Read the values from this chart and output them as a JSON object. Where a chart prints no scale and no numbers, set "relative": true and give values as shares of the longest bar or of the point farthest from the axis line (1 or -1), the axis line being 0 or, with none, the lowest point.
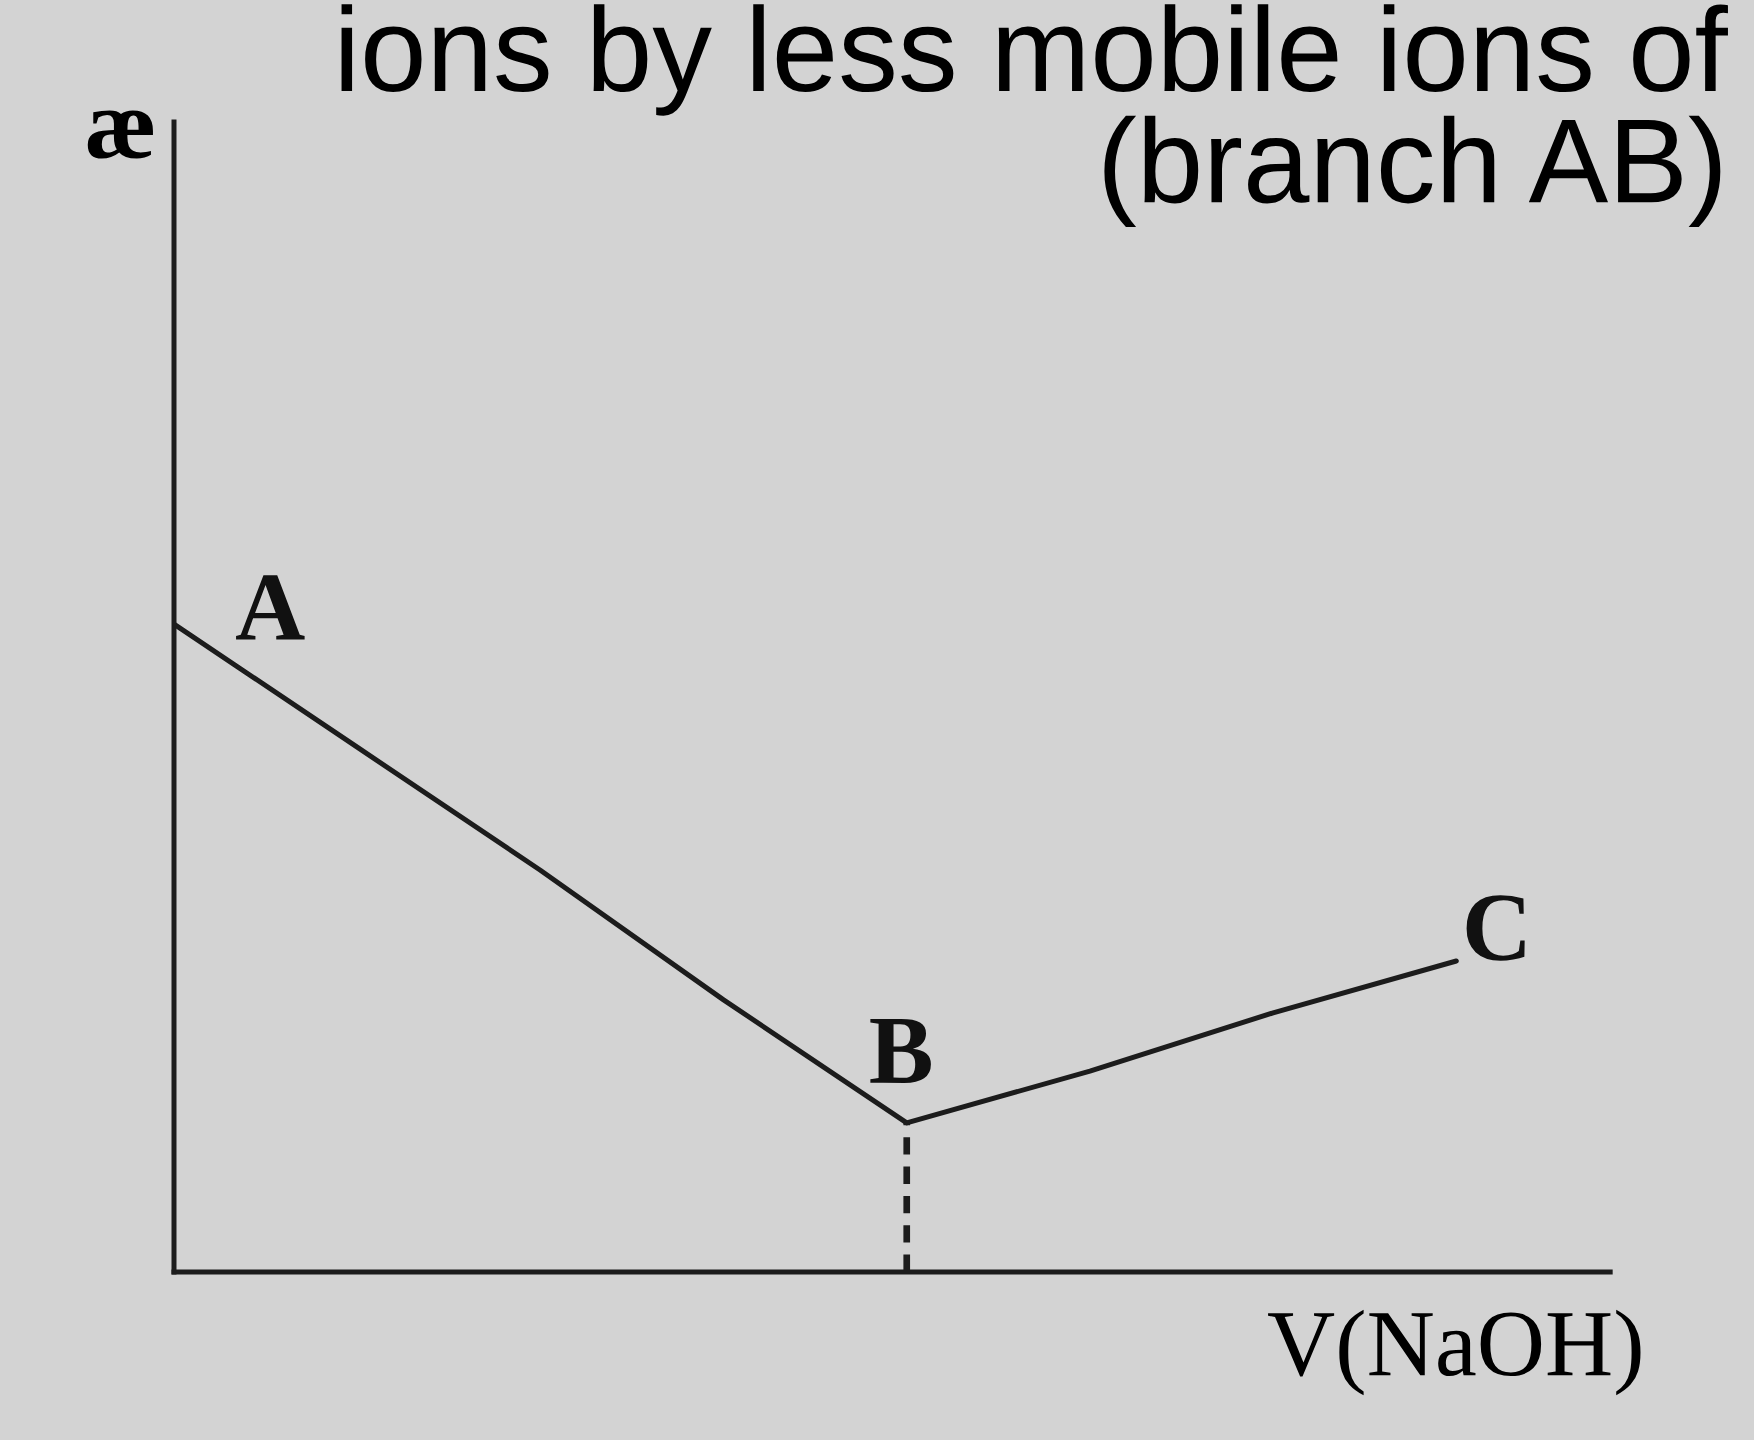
{
  "chart_data": {
    "type": "line",
    "title": "ions by less mobile ions of\n(branch AB)",
    "xlabel": "V(NaOH)",
    "ylabel": "æ",
    "relative": true,
    "line_style": "solid",
    "categories": [
      null,
      null,
      null,
      null,
      null,
      null,
      null,
      null
    ],
    "series": [
      {
        "color": "#1c1c1c",
        "values": [
          1,
          0.81,
          0.62,
          0.42,
          0.23,
          0.31,
          0.4,
          0.48
        ]
      }
    ],
    "annotations": [
      "A",
      "B",
      "C"
    ]
  }
}
